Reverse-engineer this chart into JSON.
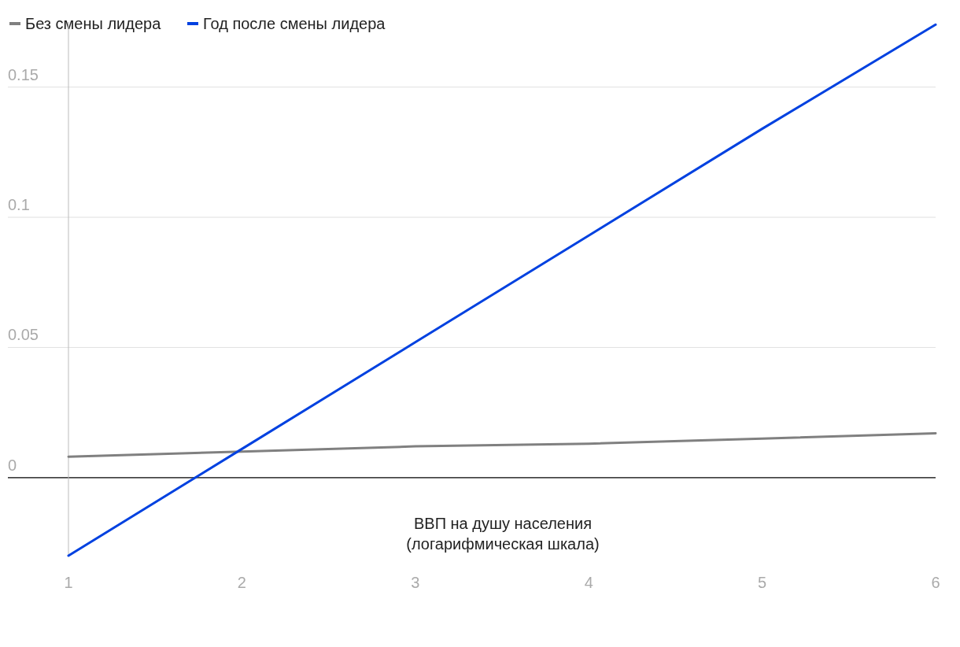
{
  "chart_data": {
    "type": "line",
    "xlabel": "ВВП на душу населения\n(логарифмическая шкала)",
    "x": [
      1,
      2,
      3,
      4,
      5,
      6
    ],
    "series": [
      {
        "name": "Без смены лидера",
        "color": "#808080",
        "values": [
          0.008,
          0.01,
          0.012,
          0.013,
          0.015,
          0.017
        ]
      },
      {
        "name": "Год после смены лидера",
        "color": "#0041e0",
        "values": [
          -0.03,
          0.011,
          0.052,
          0.093,
          0.134,
          0.174
        ]
      }
    ],
    "xlim": [
      1,
      6
    ],
    "xticks": [
      1,
      2,
      3,
      4,
      5,
      6
    ],
    "ylim": [
      -0.03,
      0.175
    ],
    "yticks": [
      0,
      0.05,
      0.1,
      0.15
    ],
    "grid": "y",
    "legend": "top left",
    "marker": "none",
    "line_style": "solid"
  }
}
